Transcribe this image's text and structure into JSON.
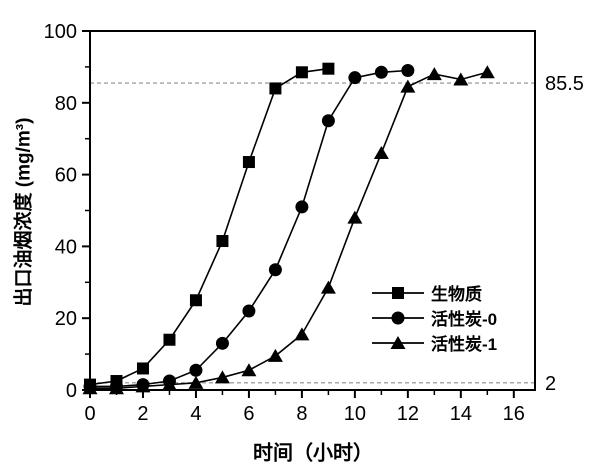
{
  "chart_data": {
    "type": "line",
    "title": "",
    "xlabel": "时间（小时）",
    "ylabel": "出口油烟浓度 (mg/m³)",
    "xlim": [
      0,
      16.8
    ],
    "ylim": [
      0,
      100
    ],
    "x_major_ticks": [
      0,
      2,
      4,
      6,
      8,
      10,
      12,
      14,
      16
    ],
    "x_minor_ticks": [
      1,
      3,
      5,
      7,
      9,
      11,
      13,
      15
    ],
    "y_major_ticks": [
      0,
      20,
      40,
      60,
      80,
      100
    ],
    "y_minor_ticks": [
      10,
      30,
      50,
      70,
      90
    ],
    "grid": false,
    "legend_position": "inside lower right",
    "series": [
      {
        "name": "生物质",
        "marker": "square",
        "color": "#000000",
        "x": [
          0,
          1,
          2,
          3,
          4,
          5,
          6,
          7,
          8,
          9
        ],
        "values": [
          1.5,
          2.5,
          6,
          14,
          25,
          41.5,
          63.5,
          84,
          88.5,
          89.5
        ]
      },
      {
        "name": "活性炭-0",
        "marker": "circle",
        "color": "#000000",
        "x": [
          0,
          1,
          2,
          3,
          4,
          5,
          6,
          7,
          8,
          9,
          10,
          11,
          12
        ],
        "values": [
          1,
          1,
          1.5,
          2.5,
          5.5,
          13,
          22,
          33.5,
          51,
          75,
          87,
          88.5,
          89
        ]
      },
      {
        "name": "活性炭-1",
        "marker": "triangle-up",
        "color": "#000000",
        "x": [
          0,
          1,
          2,
          3,
          4,
          5,
          6,
          7,
          8,
          9,
          10,
          11,
          12,
          13,
          14,
          15
        ],
        "values": [
          0.5,
          0.5,
          1,
          1.5,
          2,
          3.5,
          5.5,
          9.5,
          15.5,
          28.5,
          48,
          66,
          84.5,
          88,
          86.5,
          88.5
        ]
      }
    ],
    "reference_lines": [
      {
        "value": 85.5,
        "label": "85.5",
        "style": "dashed",
        "color": "#8c8c8c"
      },
      {
        "value": 2,
        "label": "2",
        "style": "dashed",
        "color": "#8c8c8c"
      }
    ]
  },
  "colors": {
    "axis": "#000000",
    "data": "#000000",
    "background": "#ffffff",
    "reference_line": "#8c8c8c",
    "tick_label": "#000000"
  }
}
